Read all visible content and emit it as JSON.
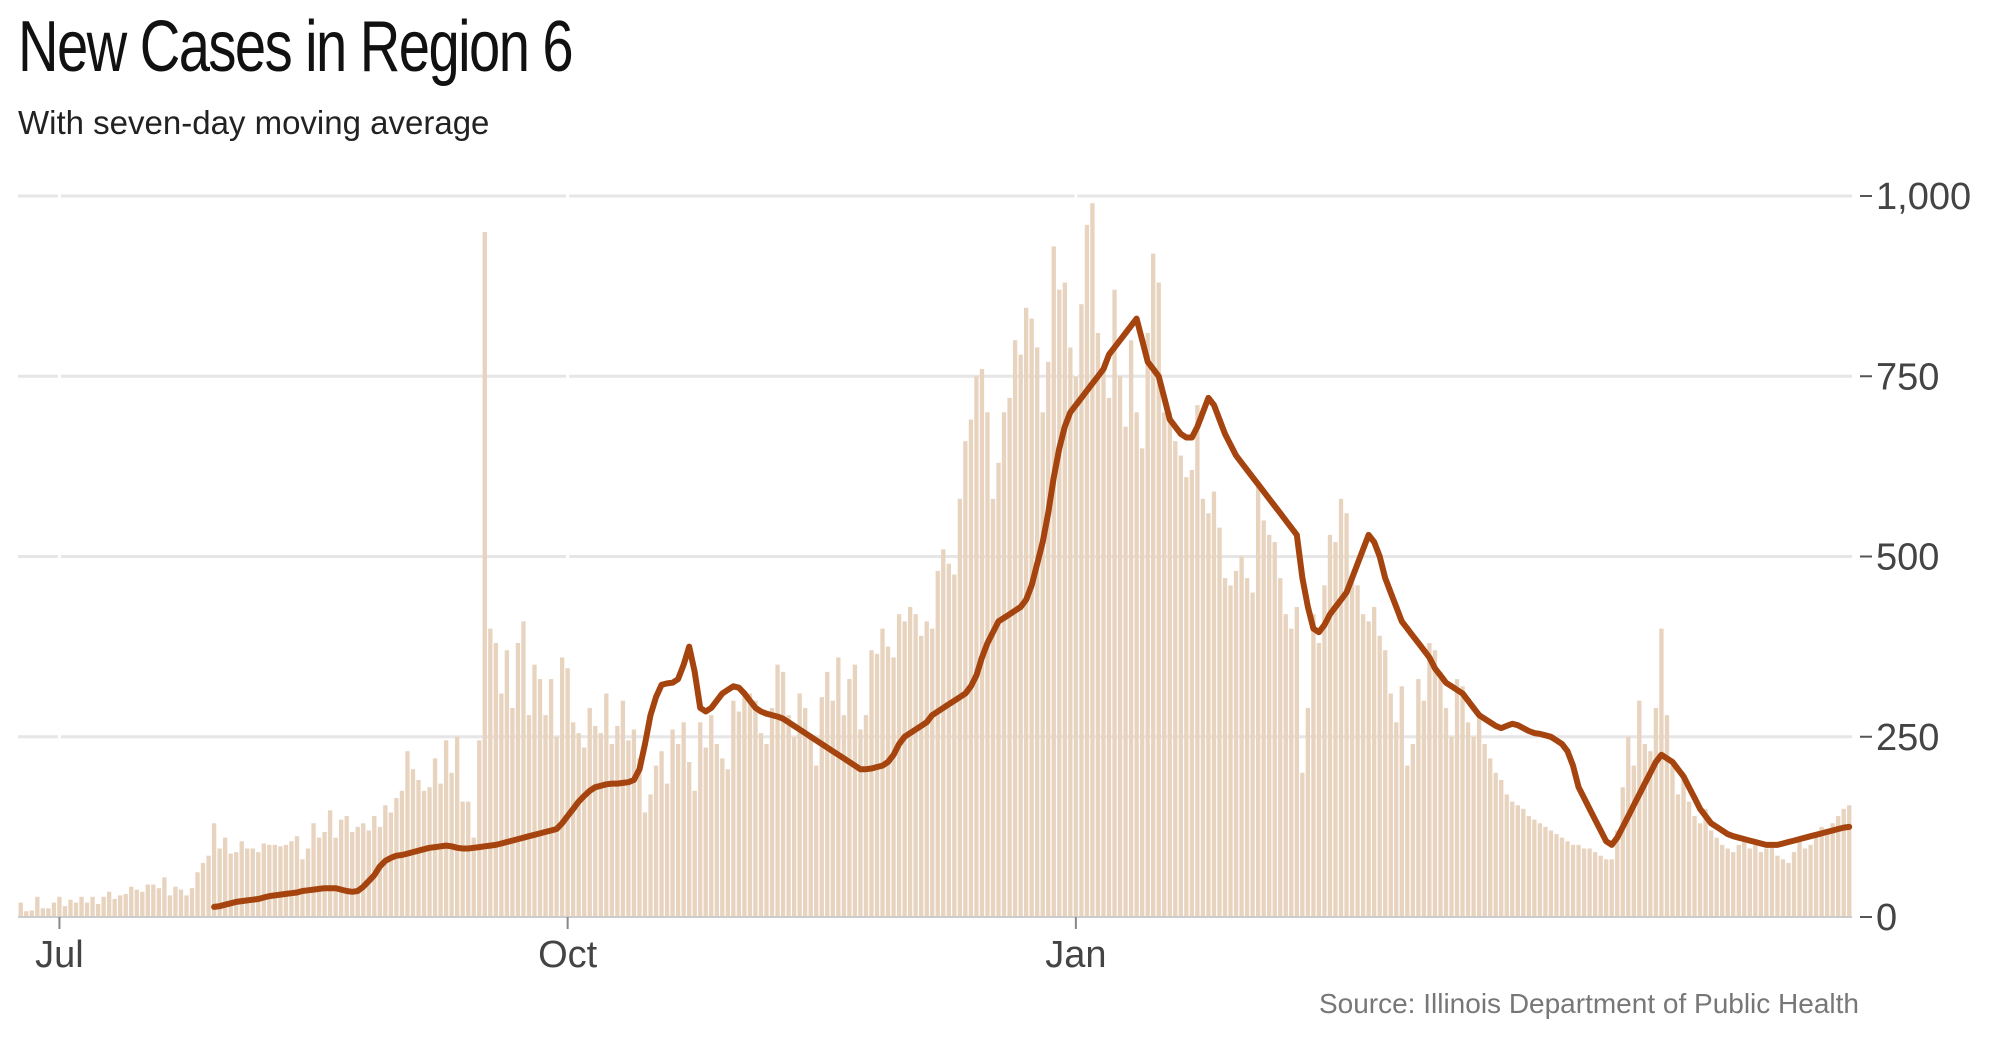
{
  "header": {
    "title": "New Cases in Region 6",
    "subtitle": "With seven-day moving average"
  },
  "footer": {
    "source": "Source: Illinois Department of Public Health"
  },
  "colors": {
    "bar": "#e8d3bf",
    "line": "#a5440f",
    "grid": "#e6e6e6",
    "axis": "#cccccc"
  },
  "chart_data": {
    "type": "bar",
    "title": "New Cases in Region 6",
    "subtitle": "With seven-day moving average",
    "xlabel": "",
    "ylabel": "",
    "ylim": [
      0,
      1000
    ],
    "yticks": [
      0,
      250,
      500,
      750,
      1000
    ],
    "ytick_labels": [
      "0",
      "250",
      "500",
      "750",
      "1,000"
    ],
    "xtick_labels": [
      "Jul",
      "Oct",
      "Jan"
    ],
    "xtick_days": [
      7,
      99,
      191
    ],
    "grid": true,
    "legend": "none",
    "series": [
      {
        "name": "",
        "kind": "bar",
        "values": [
          20,
          8,
          9,
          28,
          12,
          12,
          20,
          28,
          15,
          24,
          20,
          28,
          20,
          28,
          18,
          28,
          35,
          25,
          30,
          32,
          42,
          38,
          35,
          45,
          45,
          40,
          55,
          30,
          42,
          38,
          30,
          40,
          62,
          75,
          85,
          130,
          95,
          110,
          88,
          90,
          105,
          95,
          95,
          90,
          102,
          100,
          100,
          98,
          100,
          105,
          112,
          80,
          95,
          130,
          110,
          118,
          148,
          110,
          135,
          140,
          118,
          125,
          130,
          120,
          140,
          125,
          155,
          145,
          165,
          175,
          230,
          205,
          190,
          175,
          180,
          220,
          185,
          245,
          200,
          250,
          160,
          160,
          110,
          245,
          950,
          400,
          380,
          310,
          370,
          290,
          380,
          410,
          280,
          350,
          330,
          280,
          330,
          250,
          360,
          345,
          270,
          255,
          235,
          290,
          265,
          255,
          310,
          240,
          265,
          300,
          245,
          260,
          220,
          145,
          170,
          210,
          230,
          185,
          260,
          240,
          270,
          215,
          175,
          270,
          235,
          280,
          240,
          220,
          205,
          300,
          285,
          310,
          310,
          300,
          255,
          240,
          290,
          350,
          340,
          280,
          250,
          310,
          290,
          250,
          210,
          305,
          340,
          300,
          360,
          280,
          330,
          350,
          260,
          280,
          370,
          365,
          400,
          375,
          360,
          420,
          410,
          430,
          420,
          390,
          410,
          400,
          480,
          510,
          490,
          475,
          580,
          660,
          690,
          750,
          760,
          700,
          580,
          630,
          700,
          720,
          800,
          780,
          845,
          830,
          790,
          700,
          770,
          930,
          870,
          880,
          790,
          750,
          850,
          960,
          990,
          810,
          760,
          720,
          870,
          750,
          680,
          800,
          700,
          650,
          810,
          920,
          880,
          700,
          700,
          660,
          640,
          610,
          620,
          710,
          580,
          560,
          590,
          540,
          470,
          460,
          480,
          500,
          470,
          450,
          600,
          550,
          530,
          520,
          470,
          420,
          400,
          430,
          200,
          290,
          420,
          380,
          460,
          530,
          520,
          580,
          560,
          470,
          460,
          420,
          410,
          430,
          390,
          370,
          310,
          270,
          320,
          210,
          240,
          330,
          300,
          380,
          370,
          340,
          290,
          250,
          330,
          320,
          270,
          250,
          280,
          240,
          220,
          200,
          190,
          170,
          160,
          155,
          150,
          140,
          135,
          130,
          125,
          120,
          115,
          110,
          105,
          100,
          100,
          95,
          95,
          90,
          85,
          80,
          80,
          120,
          180,
          250,
          210,
          300,
          240,
          230,
          290,
          400,
          280,
          210,
          170,
          190,
          160,
          140,
          130,
          150,
          120,
          110,
          100,
          95,
          90,
          100,
          110,
          95,
          100,
          90,
          95,
          100,
          85,
          80,
          75,
          90,
          110,
          95,
          100,
          115,
          125,
          120,
          130,
          140,
          150,
          155
        ]
      },
      {
        "name": "",
        "kind": "line",
        "values": [
          14,
          15,
          17,
          19,
          21,
          22,
          23,
          24,
          25,
          27,
          29,
          30,
          31,
          32,
          33,
          34,
          36,
          37,
          38,
          39,
          40,
          40,
          40,
          38,
          36,
          35,
          36,
          42,
          50,
          58,
          70,
          78,
          82,
          85,
          86,
          88,
          90,
          92,
          94,
          96,
          97,
          98,
          99,
          98,
          96,
          95,
          95,
          96,
          97,
          98,
          99,
          100,
          102,
          104,
          106,
          108,
          110,
          112,
          114,
          116,
          118,
          120,
          122,
          130,
          140,
          150,
          160,
          168,
          175,
          180,
          182,
          184,
          185,
          185,
          186,
          187,
          190,
          205,
          240,
          280,
          305,
          322,
          324,
          325,
          330,
          350,
          375,
          340,
          290,
          285,
          290,
          300,
          310,
          315,
          320,
          318,
          310,
          300,
          290,
          285,
          282,
          280,
          278,
          275,
          270,
          265,
          260,
          255,
          250,
          245,
          240,
          235,
          230,
          225,
          220,
          215,
          210,
          205,
          205,
          206,
          208,
          210,
          215,
          225,
          240,
          250,
          255,
          260,
          265,
          270,
          280,
          285,
          290,
          295,
          300,
          305,
          310,
          320,
          335,
          360,
          380,
          395,
          410,
          415,
          420,
          425,
          430,
          440,
          460,
          490,
          520,
          560,
          610,
          650,
          680,
          700,
          710,
          720,
          730,
          740,
          750,
          760,
          780,
          790,
          800,
          810,
          820,
          830,
          800,
          770,
          760,
          750,
          720,
          690,
          680,
          670,
          665,
          665,
          680,
          700,
          720,
          710,
          690,
          670,
          655,
          640,
          630,
          620,
          610,
          600,
          590,
          580,
          570,
          560,
          550,
          540,
          530,
          470,
          430,
          400,
          395,
          405,
          420,
          430,
          440,
          450,
          470,
          490,
          510,
          530,
          520,
          500,
          470,
          450,
          430,
          410,
          400,
          390,
          380,
          370,
          360,
          345,
          335,
          325,
          320,
          315,
          310,
          300,
          290,
          280,
          275,
          270,
          265,
          262,
          265,
          268,
          266,
          262,
          258,
          255,
          254,
          252,
          250,
          245,
          240,
          230,
          210,
          180,
          165,
          150,
          135,
          120,
          105,
          100,
          110,
          125,
          140,
          155,
          170,
          185,
          200,
          215,
          225,
          220,
          215,
          205,
          195,
          180,
          165,
          150,
          140,
          130,
          125,
          120,
          115,
          112,
          110,
          108,
          106,
          104,
          102,
          100,
          100,
          100,
          102,
          104,
          106,
          108,
          110,
          112,
          114,
          116,
          118,
          120,
          122,
          124,
          125
        ]
      }
    ]
  }
}
